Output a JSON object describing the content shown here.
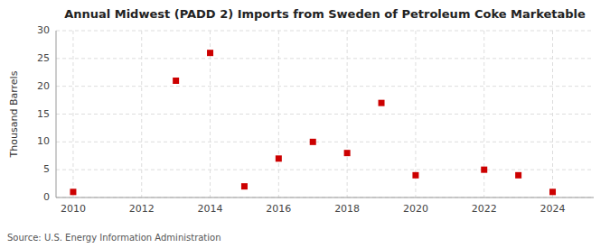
{
  "chart_data": {
    "type": "scatter",
    "title": "Annual Midwest (PADD 2) Imports from Sweden of Petroleum Coke Marketable",
    "y_label": "Thousand Barrels",
    "annotations": [
      "Source: U.S. Energy Information Administration"
    ],
    "x": [
      2010,
      2013,
      2014,
      2015,
      2016,
      2017,
      2018,
      2019,
      2020,
      2022,
      2023,
      2024
    ],
    "values": [
      1,
      21,
      26,
      2,
      7,
      10,
      8,
      17,
      4,
      5,
      4,
      1
    ],
    "color": "#cc0000",
    "marker": "square",
    "xlim": [
      2009.5,
      2025.2
    ],
    "ylim": [
      0,
      30
    ],
    "xticks": [
      2010,
      2012,
      2014,
      2016,
      2018,
      2020,
      2022,
      2024
    ],
    "yticks": [
      0,
      5,
      10,
      15,
      20,
      25,
      30
    ],
    "grid": true
  }
}
